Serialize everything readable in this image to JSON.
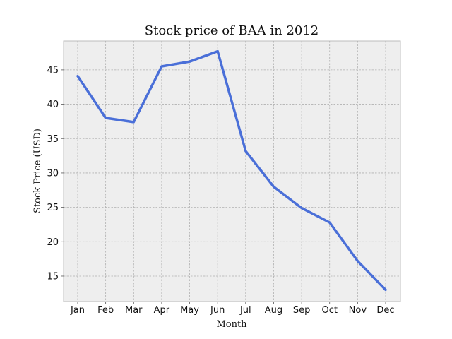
{
  "chart_data": {
    "type": "line",
    "title": "Stock price of BAA in 2012",
    "xlabel": "Month",
    "ylabel": "Stock Price (USD)",
    "categories": [
      "Jan",
      "Feb",
      "Mar",
      "Apr",
      "May",
      "Jun",
      "Jul",
      "Aug",
      "Sep",
      "Oct",
      "Nov",
      "Dec"
    ],
    "series": [
      {
        "values": [
          44.1,
          38.0,
          37.4,
          45.5,
          46.2,
          47.7,
          33.2,
          28.0,
          24.9,
          22.8,
          17.2,
          13.0
        ],
        "color": "#4a6fd8"
      }
    ],
    "ylim": [
      11.3,
      49.2
    ],
    "yticks": [
      15,
      20,
      25,
      30,
      35,
      40,
      45
    ],
    "grid": true,
    "background": "#eeeeee"
  }
}
